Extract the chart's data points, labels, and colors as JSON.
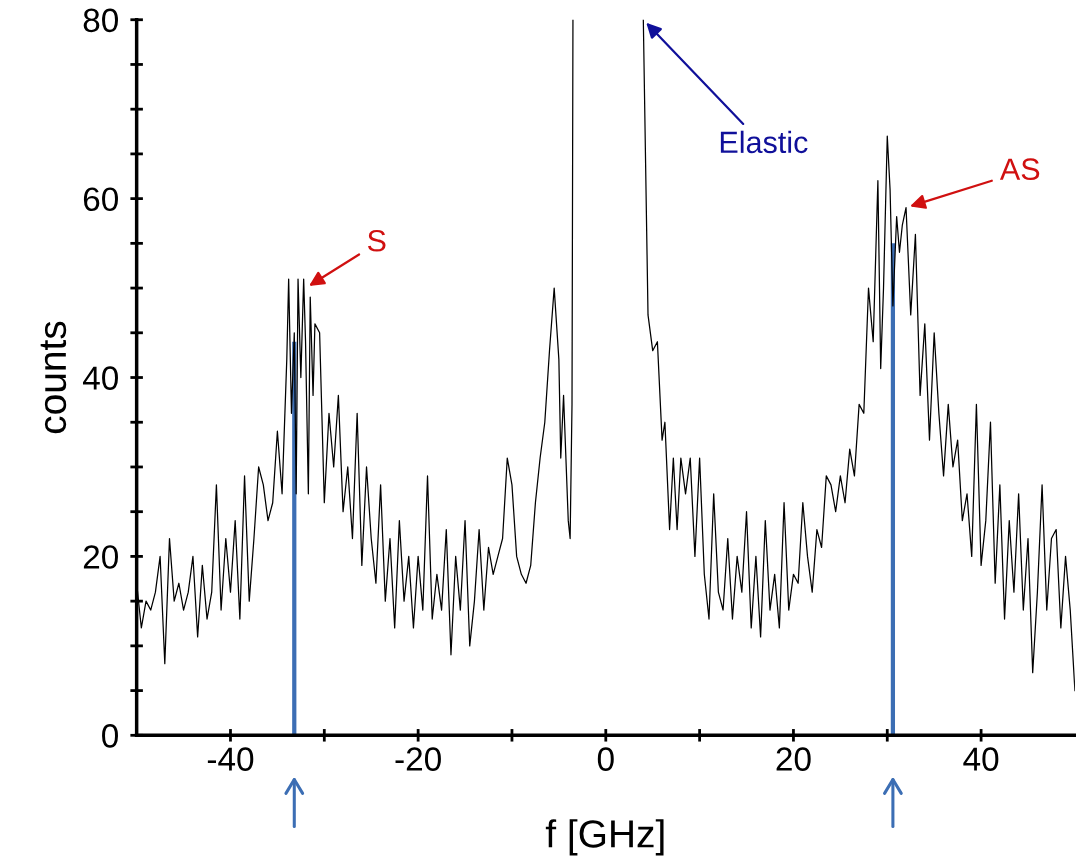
{
  "chart_data": {
    "type": "line",
    "xlabel": "f [GHz]",
    "ylabel": "counts",
    "xlim": [
      -50,
      50
    ],
    "ylim": [
      0,
      80
    ],
    "xticks": [
      -40,
      {
        "value": -30,
        "label": null
      },
      -20,
      {
        "value": -10,
        "label": null
      },
      0,
      {
        "value": 10,
        "label": null
      },
      20,
      {
        "value": 30,
        "label": null
      },
      40
    ],
    "yticks": [
      0,
      {
        "value": 5,
        "label": null
      },
      {
        "value": 10,
        "label": null
      },
      {
        "value": 15,
        "label": null
      },
      20,
      {
        "value": 25,
        "label": null
      },
      {
        "value": 30,
        "label": null
      },
      {
        "value": 35,
        "label": null
      },
      40,
      {
        "value": 45,
        "label": null
      },
      {
        "value": 50,
        "label": null
      },
      {
        "value": 55,
        "label": null
      },
      60,
      {
        "value": 65,
        "label": null
      },
      {
        "value": 70,
        "label": null
      },
      {
        "value": 75,
        "label": null
      },
      80
    ],
    "grid": false,
    "legend": false,
    "series": [
      {
        "color": "#000000",
        "x": [
          -50,
          -49.5,
          -49,
          -48.5,
          -48,
          -47.5,
          -47,
          -46.5,
          -46,
          -45.5,
          -45,
          -44.5,
          -44,
          -43.5,
          -43,
          -42.5,
          -42,
          -41.5,
          -41,
          -40.5,
          -40,
          -39.5,
          -39,
          -38.5,
          -38,
          -37.5,
          -37,
          -36.5,
          -36,
          -35.5,
          -35,
          -34.5,
          -34,
          -33.8,
          -33.5,
          -33.2,
          -33,
          -32.8,
          -32.5,
          -32.2,
          -32,
          -31.7,
          -31.5,
          -31.2,
          -31,
          -30.5,
          -30,
          -29.5,
          -29,
          -28.5,
          -28,
          -27.5,
          -27,
          -26.5,
          -26,
          -25.5,
          -25,
          -24.5,
          -24,
          -23.5,
          -23,
          -22.5,
          -22,
          -21.5,
          -21,
          -20.5,
          -20,
          -19.5,
          -19,
          -18.5,
          -18,
          -17.5,
          -17,
          -16.5,
          -16,
          -15.5,
          -15,
          -14.5,
          -14,
          -13.5,
          -13,
          -12.5,
          -12,
          -11.5,
          -11,
          -10.5,
          -10,
          -9.5,
          -9,
          -8.5,
          -8,
          -7.5,
          -7,
          -6.5,
          -6,
          -5.5,
          -5,
          -4.8,
          -4.5,
          -4,
          -3.8,
          -3.6,
          -3.5,
          0,
          4,
          4.5,
          5,
          5.5,
          6,
          6.3,
          6.8,
          7.2,
          7.6,
          8,
          8.5,
          9,
          9.5,
          10,
          10.5,
          11,
          11.5,
          12,
          12.5,
          13,
          13.5,
          14,
          14.5,
          15,
          15.5,
          16,
          16.5,
          17,
          17.5,
          18,
          18.5,
          19,
          19.5,
          20,
          20.5,
          21,
          21.5,
          22,
          22.5,
          23,
          23.5,
          24,
          24.5,
          25,
          25.5,
          26,
          26.5,
          27,
          27.5,
          28,
          28.5,
          29,
          29.3,
          29.6,
          30,
          30.3,
          30.6,
          31,
          31.3,
          31.6,
          32,
          32.5,
          33,
          33.5,
          34,
          34.5,
          35,
          35.5,
          36,
          36.5,
          37,
          37.5,
          38,
          38.5,
          39,
          39.5,
          40,
          40.5,
          41,
          41.5,
          42,
          42.5,
          43,
          43.5,
          44,
          44.5,
          45,
          45.5,
          46,
          46.5,
          47,
          47.5,
          48,
          48.5,
          49,
          49.5,
          50
        ],
        "values": [
          17,
          12,
          15,
          14,
          16,
          20,
          8,
          22,
          15,
          17,
          14,
          16,
          20,
          11,
          19,
          13,
          16,
          28,
          14,
          22,
          16,
          24,
          13,
          29,
          15,
          22,
          30,
          28,
          24,
          26,
          34,
          27,
          42,
          51,
          36,
          45,
          27,
          51,
          40,
          51,
          44,
          27,
          49,
          38,
          46,
          45,
          26,
          36,
          30,
          38,
          25,
          30,
          22,
          36,
          19,
          30,
          22,
          17,
          28,
          15,
          22,
          12,
          24,
          15,
          20,
          12,
          20,
          14,
          29,
          13,
          18,
          14,
          23,
          9,
          20,
          14,
          24,
          10,
          15,
          23,
          14,
          21,
          18,
          20,
          22,
          31,
          28,
          20,
          18,
          17,
          19,
          26,
          31,
          35,
          43,
          50,
          42,
          31,
          38,
          24,
          22,
          37,
          80,
          null,
          80,
          47,
          43,
          44,
          33,
          35,
          23,
          31,
          23,
          31,
          27,
          31,
          20,
          31,
          18,
          13,
          27,
          16,
          14,
          22,
          13,
          20,
          16,
          25,
          12,
          20,
          11,
          24,
          14,
          18,
          12,
          26,
          14,
          18,
          17,
          26,
          20,
          16,
          23,
          21,
          29,
          28,
          25,
          29,
          26,
          32,
          29,
          37,
          36,
          50,
          44,
          62,
          41,
          50,
          67,
          61,
          48,
          58,
          54,
          57,
          59,
          47,
          56,
          38,
          46,
          33,
          45,
          36,
          29,
          37,
          30,
          33,
          24,
          27,
          20,
          37,
          19,
          24,
          35,
          17,
          28,
          13,
          24,
          16,
          27,
          14,
          22,
          7,
          16,
          28,
          14,
          22,
          23,
          12,
          20,
          14,
          5
        ]
      },
      {
        "type": "bar",
        "color": "#3c6eb4",
        "x": [
          -33.2,
          30.6
        ],
        "values": [
          44,
          55
        ]
      }
    ],
    "annotations": [
      {
        "text": "S",
        "x": -32,
        "y": 50
      },
      {
        "text": "AS",
        "x": 32,
        "y": 59
      },
      {
        "text": "Elastic",
        "x": 4,
        "y": 80
      }
    ]
  }
}
